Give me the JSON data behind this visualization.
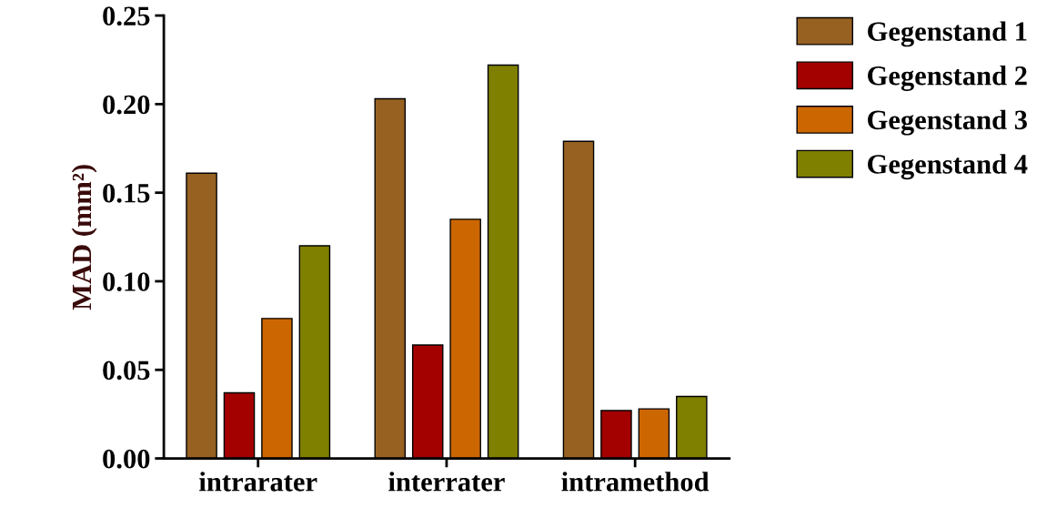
{
  "chart_data": {
    "type": "bar",
    "ylabel": "MAD (mm²)",
    "categories": [
      "intrarater",
      "interrater",
      "intramethod"
    ],
    "series": [
      {
        "name": "Gegenstand 1",
        "color": "#976121",
        "values": [
          0.161,
          0.203,
          0.179
        ]
      },
      {
        "name": "Gegenstand 2",
        "color": "#a30000",
        "values": [
          0.037,
          0.064,
          0.027
        ]
      },
      {
        "name": "Gegenstand 3",
        "color": "#cc6600",
        "values": [
          0.079,
          0.135,
          0.028
        ]
      },
      {
        "name": "Gegenstand 4",
        "color": "#7f7f00",
        "values": [
          0.12,
          0.222,
          0.035
        ]
      }
    ],
    "ylim": [
      0,
      0.25
    ],
    "yticks": [
      {
        "value": 0,
        "label": "0.00"
      },
      {
        "value": 0.05,
        "label": "0.05"
      },
      {
        "value": 0.1,
        "label": "0.10"
      },
      {
        "value": 0.15,
        "label": "0.15"
      },
      {
        "value": 0.2,
        "label": "0.20"
      },
      {
        "value": 0.25,
        "label": "0.25"
      }
    ],
    "grid": false,
    "legend": "top right"
  }
}
